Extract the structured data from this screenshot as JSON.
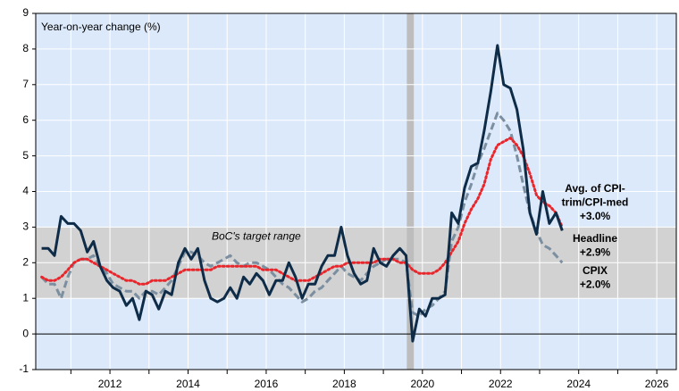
{
  "chart_data": {
    "type": "line",
    "axis_label": "Year-on-year change (%)",
    "band_label": "BoC's target range",
    "target_range": [
      1,
      3
    ],
    "shaded_period": [
      2020.1,
      2020.28
    ],
    "xlim": [
      2010.6,
      2027.0
    ],
    "ylim": [
      -1,
      9
    ],
    "yticks": [
      -1,
      0,
      1,
      2,
      3,
      4,
      5,
      6,
      7,
      8,
      9
    ],
    "xticks": [
      {
        "value": 2012.5,
        "label": "2012"
      },
      {
        "value": 2014.5,
        "label": "2014"
      },
      {
        "value": 2016.5,
        "label": "2016"
      },
      {
        "value": 2018.5,
        "label": "2018"
      },
      {
        "value": 2020.5,
        "label": "2020"
      },
      {
        "value": 2022.5,
        "label": "2022"
      },
      {
        "value": 2024.5,
        "label": "2024"
      },
      {
        "value": 2026.5,
        "label": "2026"
      }
    ],
    "xminor": [
      2011.5,
      2013.5,
      2015.5,
      2017.5,
      2019.5,
      2021.5,
      2023.5,
      2025.5
    ],
    "grid": true,
    "x": [
      2010.75,
      2010.92,
      2011.08,
      2011.25,
      2011.42,
      2011.58,
      2011.75,
      2011.92,
      2012.08,
      2012.25,
      2012.42,
      2012.58,
      2012.75,
      2012.92,
      2013.08,
      2013.25,
      2013.42,
      2013.58,
      2013.75,
      2013.92,
      2014.08,
      2014.25,
      2014.42,
      2014.58,
      2014.75,
      2014.92,
      2015.08,
      2015.25,
      2015.42,
      2015.58,
      2015.75,
      2015.92,
      2016.08,
      2016.25,
      2016.42,
      2016.58,
      2016.75,
      2016.92,
      2017.08,
      2017.25,
      2017.42,
      2017.58,
      2017.75,
      2017.92,
      2018.08,
      2018.25,
      2018.42,
      2018.58,
      2018.75,
      2018.92,
      2019.08,
      2019.25,
      2019.42,
      2019.58,
      2019.75,
      2019.92,
      2020.08,
      2020.25,
      2020.42,
      2020.58,
      2020.75,
      2020.92,
      2021.08,
      2021.25,
      2021.42,
      2021.58,
      2021.75,
      2021.92,
      2022.08,
      2022.25,
      2022.42,
      2022.58,
      2022.75,
      2022.92,
      2023.08,
      2023.25,
      2023.42,
      2023.58,
      2023.75,
      2023.92,
      2024.08
    ],
    "series": [
      {
        "name": "CPIX",
        "label_lines": [
          "CPIX",
          "+2.0%"
        ],
        "color": "#7b8fa0",
        "style": "dashed",
        "values": [
          1.6,
          1.4,
          1.4,
          1.0,
          1.6,
          2.0,
          2.1,
          2.1,
          2.2,
          1.9,
          1.7,
          1.4,
          1.3,
          1.2,
          1.2,
          1.0,
          1.2,
          1.2,
          1.1,
          1.3,
          1.5,
          1.9,
          2.3,
          2.3,
          2.2,
          2.0,
          1.9,
          2.0,
          2.1,
          2.2,
          2.0,
          1.9,
          2.0,
          2.0,
          1.9,
          1.8,
          1.6,
          1.4,
          1.3,
          1.1,
          0.9,
          1.0,
          1.2,
          1.3,
          1.5,
          1.7,
          1.9,
          1.7,
          1.6,
          1.5,
          1.7,
          1.9,
          2.0,
          2.1,
          2.1,
          2.1,
          2.0,
          0.6,
          0.5,
          0.7,
          0.8,
          1.0,
          1.2,
          2.6,
          3.0,
          3.7,
          4.2,
          4.8,
          5.2,
          5.7,
          6.2,
          6.0,
          5.7,
          5.0,
          4.2,
          3.4,
          2.9,
          2.5,
          2.4,
          2.2,
          2.0
        ]
      },
      {
        "name": "Avg. of CPI-trim/CPI-med",
        "label_lines": [
          "Avg. of CPI-",
          "trim/CPI-med",
          "+3.0%"
        ],
        "color": "#e8262b",
        "style": "dotted",
        "values": [
          1.6,
          1.5,
          1.5,
          1.6,
          1.8,
          2.0,
          2.1,
          2.1,
          2.0,
          1.9,
          1.8,
          1.7,
          1.6,
          1.5,
          1.5,
          1.4,
          1.4,
          1.5,
          1.5,
          1.5,
          1.6,
          1.7,
          1.8,
          1.8,
          1.8,
          1.8,
          1.8,
          1.9,
          1.9,
          1.9,
          1.9,
          1.9,
          1.9,
          1.9,
          1.8,
          1.8,
          1.8,
          1.7,
          1.6,
          1.5,
          1.5,
          1.5,
          1.6,
          1.7,
          1.8,
          1.9,
          1.9,
          2.0,
          2.0,
          2.0,
          2.0,
          2.0,
          2.1,
          2.1,
          2.1,
          2.0,
          2.0,
          1.8,
          1.7,
          1.7,
          1.7,
          1.8,
          2.0,
          2.3,
          2.6,
          3.1,
          3.5,
          3.8,
          4.2,
          4.9,
          5.3,
          5.4,
          5.5,
          5.3,
          5.0,
          4.5,
          3.9,
          3.7,
          3.6,
          3.4,
          3.0
        ]
      },
      {
        "name": "Headline",
        "label_lines": [
          "Headline",
          "+2.9%"
        ],
        "color": "#0e2c48",
        "style": "solid",
        "values": [
          2.4,
          2.4,
          2.2,
          3.3,
          3.1,
          3.1,
          2.9,
          2.3,
          2.6,
          1.9,
          1.5,
          1.3,
          1.2,
          0.8,
          1.0,
          0.4,
          1.2,
          1.1,
          0.7,
          1.2,
          1.1,
          2.0,
          2.4,
          2.1,
          2.4,
          1.5,
          1.0,
          0.9,
          1.0,
          1.3,
          1.0,
          1.6,
          1.4,
          1.7,
          1.5,
          1.1,
          1.5,
          1.5,
          2.0,
          1.6,
          1.0,
          1.4,
          1.4,
          1.9,
          2.2,
          2.2,
          3.0,
          2.2,
          1.7,
          1.4,
          1.5,
          2.4,
          2.0,
          1.9,
          2.2,
          2.4,
          2.2,
          -0.2,
          0.7,
          0.5,
          1.0,
          1.0,
          1.1,
          3.4,
          3.1,
          4.1,
          4.7,
          4.8,
          5.7,
          6.8,
          8.1,
          7.0,
          6.9,
          6.3,
          5.2,
          3.4,
          2.8,
          4.0,
          3.1,
          3.4,
          2.9
        ]
      }
    ]
  }
}
